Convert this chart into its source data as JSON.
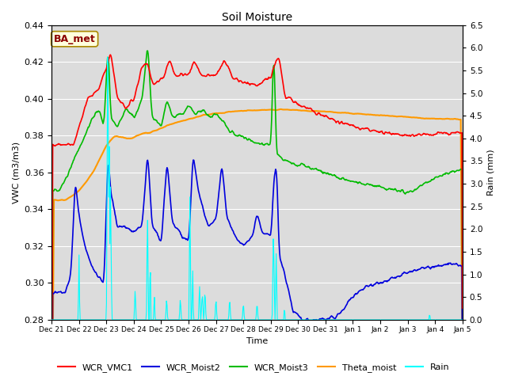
{
  "title": "Soil Moisture",
  "xlabel": "Time",
  "ylabel_left": "VWC (m3/m3)",
  "ylabel_right": "Rain (mm)",
  "ylim_left": [
    0.28,
    0.44
  ],
  "ylim_right": [
    0.0,
    6.5
  ],
  "annotation_text": "BA_met",
  "annotation_color": "#8b0000",
  "annotation_bg": "#ffffdd",
  "background_color": "#dcdcdc",
  "line_colors": {
    "WCR_VMC1": "#ff0000",
    "WCR_Moist2": "#0000dd",
    "WCR_Moist3": "#00bb00",
    "Theta_moist": "#ff9900",
    "Rain": "#00ffff"
  },
  "line_widths": {
    "WCR_VMC1": 1.2,
    "WCR_Moist2": 1.2,
    "WCR_Moist3": 1.2,
    "Theta_moist": 1.5,
    "Rain": 0.8
  },
  "xtick_labels": [
    "Dec 21",
    "Dec 22",
    "Dec 23",
    "Dec 24",
    "Dec 25",
    "Dec 26",
    "Dec 27",
    "Dec 28",
    "Dec 29",
    "Dec 30",
    "Dec 31",
    "Jan 1",
    "Jan 2",
    "Jan 3",
    "Jan 4",
    "Jan 5"
  ],
  "xtick_positions": [
    0,
    1,
    2,
    3,
    4,
    5,
    6,
    7,
    8,
    9,
    10,
    11,
    12,
    13,
    14,
    15
  ],
  "yticks_left": [
    0.28,
    0.3,
    0.32,
    0.34,
    0.36,
    0.38,
    0.4,
    0.42,
    0.44
  ],
  "yticks_right": [
    0.0,
    0.5,
    1.0,
    1.5,
    2.0,
    2.5,
    3.0,
    3.5,
    4.0,
    4.5,
    5.0,
    5.5,
    6.0,
    6.5
  ],
  "figsize": [
    6.4,
    4.8
  ],
  "dpi": 100
}
